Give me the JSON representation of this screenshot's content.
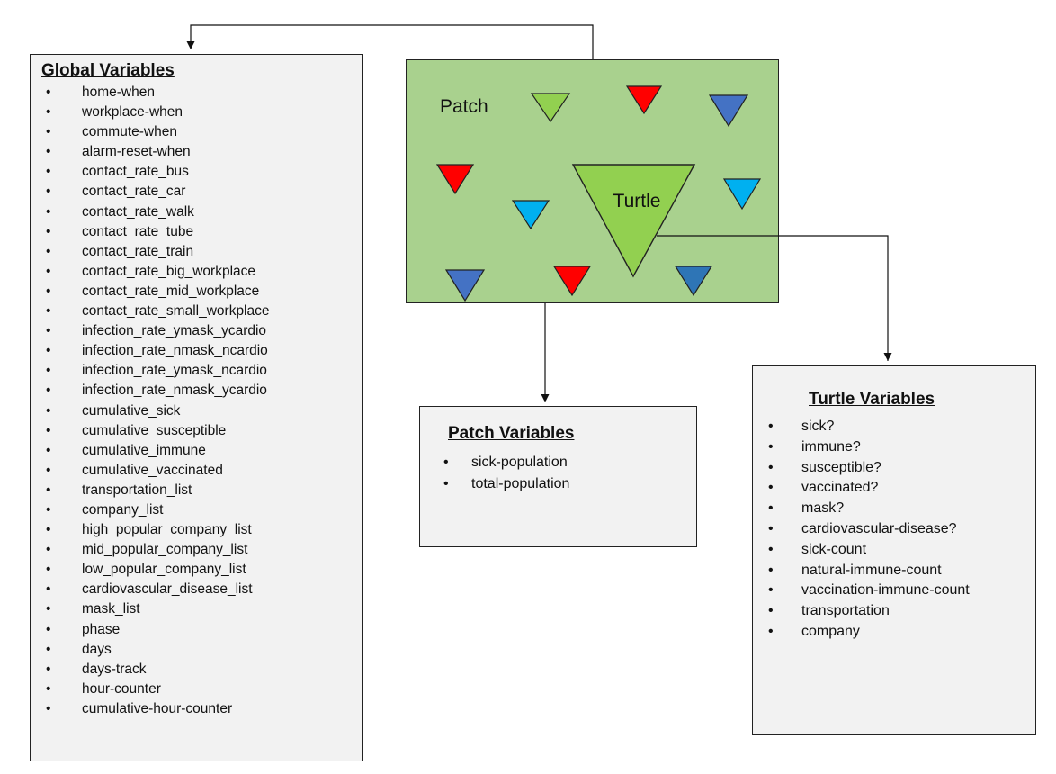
{
  "global_box": {
    "title": "Global Variables",
    "items": [
      "home-when",
      "workplace-when",
      "commute-when",
      "alarm-reset-when",
      "contact_rate_bus",
      "contact_rate_car",
      "contact_rate_walk",
      "contact_rate_tube",
      "contact_rate_train",
      "contact_rate_big_workplace",
      "contact_rate_mid_workplace",
      "contact_rate_small_workplace",
      "infection_rate_ymask_ycardio",
      "infection_rate_nmask_ncardio",
      "infection_rate_ymask_ncardio",
      "infection_rate_nmask_ycardio",
      "cumulative_sick",
      "cumulative_susceptible",
      "cumulative_immune",
      "cumulative_vaccinated",
      "transportation_list",
      "company_list",
      "high_popular_company_list",
      "mid_popular_company_list",
      "low_popular_company_list",
      "cardiovascular_disease_list",
      "mask_list",
      "phase",
      "days",
      "days-track",
      "hour-counter",
      "cumulative-hour-counter"
    ]
  },
  "patch_area": {
    "label": "Patch"
  },
  "turtle": {
    "label": "Turtle"
  },
  "patch_box": {
    "title": "Patch Variables",
    "items": [
      "sick-population",
      "total-population"
    ]
  },
  "turtle_box": {
    "title": "Turtle Variables",
    "items": [
      "sick?",
      "immune?",
      "susceptible?",
      "vaccinated?",
      "mask?",
      "cardiovascular-disease?",
      "sick-count",
      "natural-immune-count",
      "vaccination-immune-count",
      "transportation",
      "company"
    ]
  },
  "colors": {
    "patch_fill": "#a9d18e",
    "turtle_green": "#92d050",
    "turtle_red": "#ff0000",
    "turtle_blue": "#4472c4",
    "turtle_light_blue": "#00b0f0",
    "turtle_dark_blue": "#2e75b6"
  }
}
